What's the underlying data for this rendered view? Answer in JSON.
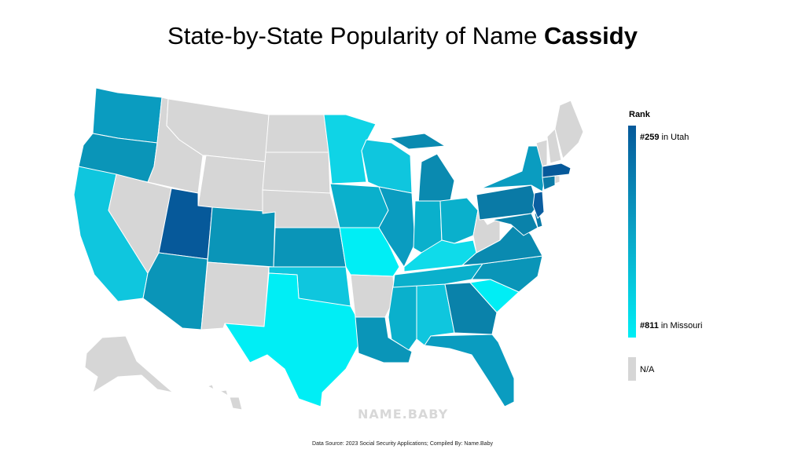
{
  "title": {
    "prefix": "State-by-State Popularity of Name ",
    "name": "Cassidy"
  },
  "legend": {
    "title": "Rank",
    "top_rank": "#259",
    "top_text": " in Utah",
    "bottom_rank": "#811",
    "bottom_text": " in Missouri",
    "na_label": "N/A",
    "colors": {
      "high": "#06599a",
      "mid": "#0aa3c6",
      "low": "#00eef5",
      "na": "#d6d6d6"
    }
  },
  "watermark": "NAME.BABY",
  "source": "Data Source: 2023 Social Security Applications; Compiled By: Name.Baby"
}
